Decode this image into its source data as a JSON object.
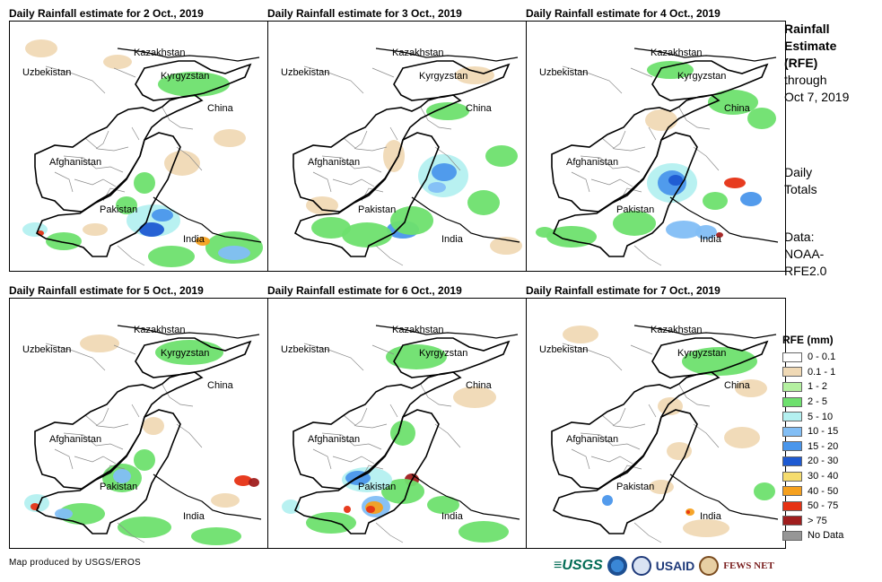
{
  "panels": [
    {
      "title": "Daily Rainfall estimate for 2 Oct., 2019",
      "day": 2
    },
    {
      "title": "Daily Rainfall estimate for 3 Oct., 2019",
      "day": 3
    },
    {
      "title": "Daily Rainfall estimate for 4 Oct., 2019",
      "day": 4
    },
    {
      "title": "Daily Rainfall estimate for 5 Oct., 2019",
      "day": 5
    },
    {
      "title": "Daily Rainfall estimate for 6 Oct., 2019",
      "day": 6
    },
    {
      "title": "Daily Rainfall estimate for 7 Oct., 2019",
      "day": 7
    }
  ],
  "map_labels": {
    "kazakhstan": "Kazakhstan",
    "uzbekistan": "Uzbekistan",
    "kyrgyzstan": "Kyrgyzstan",
    "china": "China",
    "afghanistan": "Afghanistan",
    "pakistan": "Pakistan",
    "india": "India"
  },
  "sidebar": {
    "title_line1": "Rainfall",
    "title_line2": "Estimate",
    "title_line3": "(RFE)",
    "through": "through",
    "date": "Oct 7, 2019",
    "daily1": "Daily",
    "daily2": "Totals",
    "data1": "Data:",
    "data2": "NOAA-",
    "data3": "RFE2.0"
  },
  "legend": {
    "title": "RFE (mm)",
    "items": [
      {
        "label": "0 - 0.1",
        "color": "#ffffff"
      },
      {
        "label": "0.1 - 1",
        "color": "#f0d9b5"
      },
      {
        "label": "1 - 2",
        "color": "#b4f0a0"
      },
      {
        "label": "2 - 5",
        "color": "#6ee06e"
      },
      {
        "label": "5 - 10",
        "color": "#b4f0f0"
      },
      {
        "label": "10 - 15",
        "color": "#82bef5"
      },
      {
        "label": "15 - 20",
        "color": "#4a96eb"
      },
      {
        "label": "20 - 30",
        "color": "#1e5ad2"
      },
      {
        "label": "30 - 40",
        "color": "#f5dc6e"
      },
      {
        "label": "40 - 50",
        "color": "#f5a01e"
      },
      {
        "label": "50 - 75",
        "color": "#e63214"
      },
      {
        "label": "> 75",
        "color": "#a01e1e"
      },
      {
        "label": "No Data",
        "color": "#969696"
      }
    ]
  },
  "footer": "Map produced by USGS/EROS",
  "logos": {
    "usgs": "≡USGS",
    "usaid": "USAID",
    "fews": "FEWS NET"
  }
}
